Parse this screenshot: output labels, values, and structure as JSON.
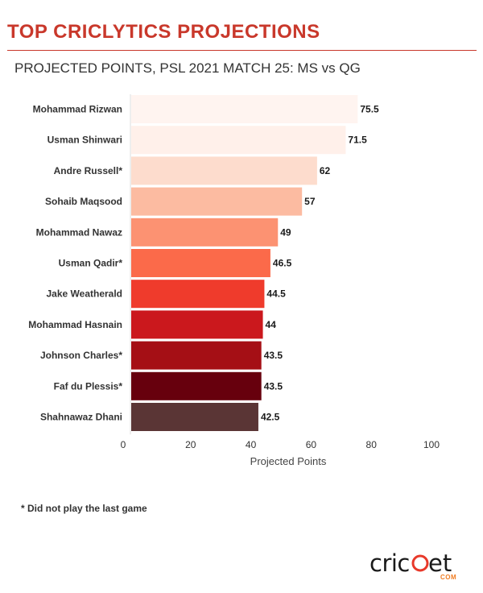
{
  "header": {
    "title": "TOP CRICLYTICS PROJECTIONS",
    "subtitle": "PROJECTED POINTS, PSL 2021 MATCH 25: MS vs QG"
  },
  "footnote": "* Did not play the last game",
  "logo": {
    "word": "cricket",
    "suffix": "COM"
  },
  "chart_data": {
    "type": "bar",
    "orientation": "horizontal",
    "categories": [
      "Mohammad Rizwan",
      "Usman Shinwari",
      "Andre Russell*",
      "Sohaib Maqsood",
      "Mohammad Nawaz",
      "Usman Qadir*",
      "Jake Weatherald",
      "Mohammad Hasnain",
      "Johnson Charles*",
      "Faf du Plessis*",
      "Shahnawaz Dhani"
    ],
    "values": [
      75.5,
      71.5,
      62,
      57,
      49,
      46.5,
      44.5,
      44,
      43.5,
      43.5,
      42.5
    ],
    "value_labels": [
      "75.5",
      "71.5",
      "62",
      "57",
      "49",
      "46.5",
      "44.5",
      "44",
      "43.5",
      "43.5",
      "42.5"
    ],
    "bar_colors": [
      "#fff4f0",
      "#fff0ea",
      "#fddccd",
      "#fcbba1",
      "#fc9272",
      "#fb6a4a",
      "#ef3b2c",
      "#cb181d",
      "#a50f15",
      "#67000d",
      "#5a3535"
    ],
    "xlabel": "Projected Points",
    "ylabel": "",
    "xlim": [
      0,
      100
    ],
    "xticks": [
      0,
      20,
      40,
      60,
      80,
      100
    ],
    "grid": false,
    "legend": "none"
  }
}
